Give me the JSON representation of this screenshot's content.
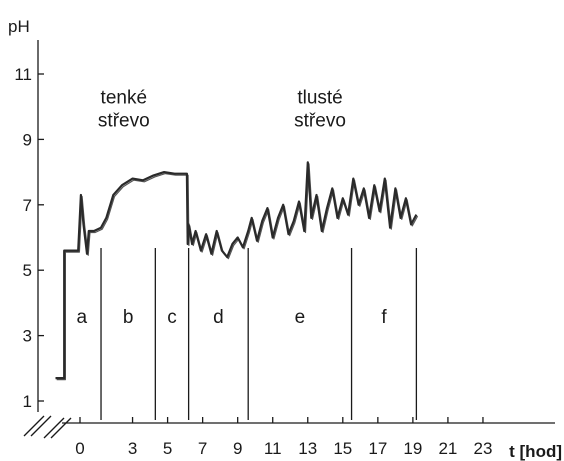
{
  "chart_data": {
    "type": "line",
    "title": "",
    "xlabel": "t [hod]",
    "ylabel": "pH",
    "xlim": [
      -1.6,
      25
    ],
    "ylim": [
      0.5,
      11.8
    ],
    "xticks": [
      0,
      3,
      5,
      7,
      9,
      11,
      13,
      15,
      17,
      19,
      21,
      23
    ],
    "yticks": [
      1,
      3,
      5,
      7,
      9,
      11
    ],
    "grid": false,
    "annotations": [
      {
        "text": "tenké",
        "x": 2.5,
        "y": 10.1
      },
      {
        "text": "střevo",
        "x": 2.5,
        "y": 9.4
      },
      {
        "text": "tlusté",
        "x": 13.7,
        "y": 10.1
      },
      {
        "text": "střevo",
        "x": 13.7,
        "y": 9.4
      }
    ],
    "segments": [
      {
        "label": "a",
        "from": -1.0,
        "to": 1.2
      },
      {
        "label": "b",
        "from": 1.2,
        "to": 4.3
      },
      {
        "label": "c",
        "from": 4.3,
        "to": 6.2
      },
      {
        "label": "d",
        "from": 6.2,
        "to": 9.6
      },
      {
        "label": "e",
        "from": 9.6,
        "to": 15.5
      },
      {
        "label": "f",
        "from": 15.5,
        "to": 19.2
      }
    ],
    "series": [
      {
        "color": "#2a2a2a",
        "x": [
          -1.4,
          -0.9,
          -0.9,
          -0.1,
          0.05,
          0.2,
          0.4,
          0.5,
          0.8,
          1.2,
          1.5,
          1.9,
          2.4,
          3.0,
          3.6,
          4.2,
          4.8,
          5.4,
          5.9,
          6.1,
          6.15,
          6.2,
          6.4,
          6.6,
          6.9,
          7.2,
          7.5,
          7.8,
          8.1,
          8.4,
          8.7,
          9.0,
          9.3,
          9.6,
          9.8,
          10.1,
          10.4,
          10.7,
          11.0,
          11.3,
          11.6,
          11.9,
          12.2,
          12.5,
          12.8,
          13.0,
          13.2,
          13.5,
          13.8,
          14.1,
          14.4,
          14.7,
          15.0,
          15.3,
          15.6,
          15.9,
          16.2,
          16.5,
          16.8,
          17.1,
          17.4,
          17.7,
          18.0,
          18.3,
          18.6,
          18.9,
          19.2
        ],
        "y": [
          1.7,
          1.7,
          5.6,
          5.6,
          7.3,
          6.4,
          5.5,
          6.2,
          6.2,
          6.3,
          6.6,
          7.3,
          7.6,
          7.8,
          7.75,
          7.9,
          8.0,
          7.95,
          7.95,
          7.95,
          5.8,
          6.4,
          5.8,
          6.2,
          5.6,
          6.1,
          5.5,
          6.2,
          5.6,
          5.4,
          5.8,
          6.0,
          5.7,
          6.2,
          6.6,
          5.9,
          6.5,
          6.9,
          6.0,
          6.6,
          7.0,
          6.1,
          6.5,
          7.1,
          6.2,
          8.3,
          6.6,
          7.3,
          6.2,
          6.9,
          7.5,
          6.6,
          7.2,
          6.7,
          7.8,
          7.0,
          7.5,
          6.6,
          7.6,
          6.8,
          7.8,
          6.3,
          7.5,
          6.6,
          7.2,
          6.4,
          6.7
        ]
      }
    ]
  }
}
